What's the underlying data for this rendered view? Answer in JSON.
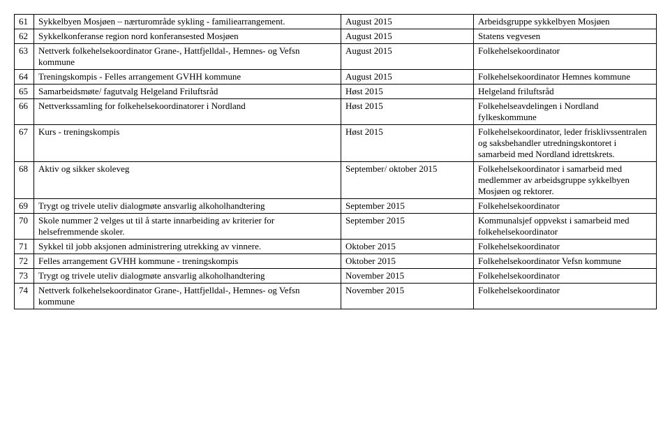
{
  "rows": [
    {
      "n": "61",
      "desc": "Sykkelbyen Mosjøen – nærturområde sykling - familiearrangement.",
      "date": "August 2015",
      "resp": "Arbeidsgruppe sykkelbyen Mosjøen"
    },
    {
      "n": "62",
      "desc": "Sykkelkonferanse region nord konferansested Mosjøen",
      "date": "August 2015",
      "resp": "Statens vegvesen"
    },
    {
      "n": "63",
      "desc": "Nettverk folkehelsekoordinator Grane-, Hattfjelldal-, Hemnes- og Vefsn kommune",
      "date": "August 2015",
      "resp": "Folkehelsekoordinator"
    },
    {
      "n": "64",
      "desc": "Treningskompis - Felles arrangement GVHH kommune",
      "date": "August 2015",
      "resp": "Folkehelsekoordinator Hemnes kommune"
    },
    {
      "n": "65",
      "desc": "Samarbeidsmøte/ fagutvalg Helgeland Friluftsråd",
      "date": "Høst 2015",
      "resp": "Helgeland friluftsråd"
    },
    {
      "n": "66",
      "desc": "Nettverkssamling for folkehelsekoordinatorer i Nordland",
      "date": "Høst 2015",
      "resp": "Folkehelseavdelingen i Nordland fylkeskommune"
    },
    {
      "n": "67",
      "desc": "Kurs - treningskompis",
      "date": "Høst 2015",
      "resp": "Folkehelsekoordinator, leder frisklivssentralen og saksbehandler utredningskontoret i samarbeid med Nordland idrettskrets."
    },
    {
      "n": "68",
      "desc": "Aktiv og sikker skoleveg",
      "date": "September/ oktober 2015",
      "resp": "Folkehelsekoordinator i samarbeid med medlemmer av arbeidsgruppe sykkelbyen Mosjøen og rektorer."
    },
    {
      "n": "69",
      "desc": "Trygt og trivele uteliv dialogmøte ansvarlig alkoholhandtering",
      "date": "September 2015",
      "resp": "Folkehelsekoordinator"
    },
    {
      "n": "70",
      "desc": "Skole nummer 2 velges ut til å starte innarbeiding av kriterier for helsefremmende skoler.",
      "date": "September 2015",
      "resp": "Kommunalsjef oppvekst i samarbeid med folkehelsekoordinator"
    },
    {
      "n": "71",
      "desc": "Sykkel til jobb aksjonen administrering utrekking av vinnere.",
      "date": "Oktober 2015",
      "resp": "Folkehelsekoordinator"
    },
    {
      "n": "72",
      "desc": "Felles arrangement GVHH kommune - treningskompis",
      "date": "Oktober 2015",
      "resp": "Folkehelsekoordinator Vefsn kommune"
    },
    {
      "n": "73",
      "desc": "Trygt og trivele uteliv dialogmøte ansvarlig alkoholhandtering",
      "date": "November 2015",
      "resp": "Folkehelsekoordinator"
    },
    {
      "n": "74",
      "desc": "Nettverk folkehelsekoordinator Grane-, Hattfjelldal-, Hemnes- og Vefsn kommune",
      "date": "November 2015",
      "resp": "Folkehelsekoordinator"
    }
  ]
}
